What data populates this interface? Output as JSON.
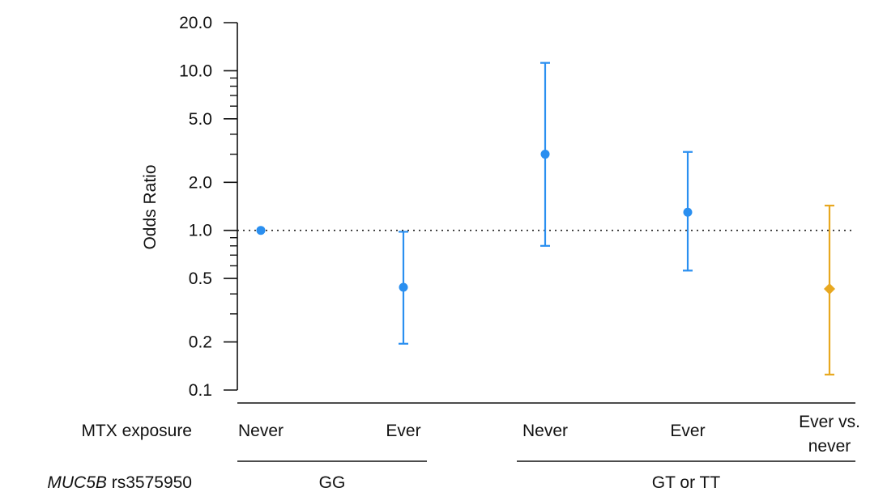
{
  "chart_data": {
    "type": "scatter",
    "ylabel": "Odds Ratio",
    "yscale": "log",
    "ylim": [
      0.1,
      20
    ],
    "yticks": [
      {
        "value": 20.0,
        "label": "20.0"
      },
      {
        "value": 10.0,
        "label": "10.0"
      },
      {
        "value": 5.0,
        "label": "5.0"
      },
      {
        "value": 2.0,
        "label": "2.0"
      },
      {
        "value": 1.0,
        "label": "1.0"
      },
      {
        "value": 0.5,
        "label": "0.5"
      },
      {
        "value": 0.2,
        "label": "0.2"
      },
      {
        "value": 0.1,
        "label": "0.1"
      }
    ],
    "yminor": [
      0.3,
      0.4,
      0.6,
      0.7,
      0.8,
      0.9,
      3,
      4,
      6,
      7,
      8,
      9
    ],
    "reference_line": 1.0,
    "row_labels": {
      "exposure": "MTX exposure",
      "genotype_italic": "MUC5B",
      "genotype_rest": " rs3575950"
    },
    "points": [
      {
        "label": "Never",
        "group": "GG",
        "or": 1.0,
        "low": null,
        "high": null,
        "marker": "circle",
        "color": "#2a8ff0"
      },
      {
        "label": "Ever",
        "group": "GG",
        "or": 0.44,
        "low": 0.195,
        "high": 0.98,
        "marker": "circle",
        "color": "#2a8ff0"
      },
      {
        "label": "Never",
        "group": "GT or TT",
        "or": 3.0,
        "low": 0.8,
        "high": 11.2,
        "marker": "circle",
        "color": "#2a8ff0"
      },
      {
        "label": "Ever",
        "group": "GT or TT",
        "or": 1.3,
        "low": 0.56,
        "high": 3.1,
        "marker": "circle",
        "color": "#2a8ff0"
      },
      {
        "label": "Ever vs.\nnever",
        "group": "GT or TT",
        "or": 0.43,
        "low": 0.125,
        "high": 1.43,
        "marker": "diamond",
        "color": "#e8a820"
      }
    ],
    "groups": [
      "GG",
      "GT or TT"
    ]
  }
}
